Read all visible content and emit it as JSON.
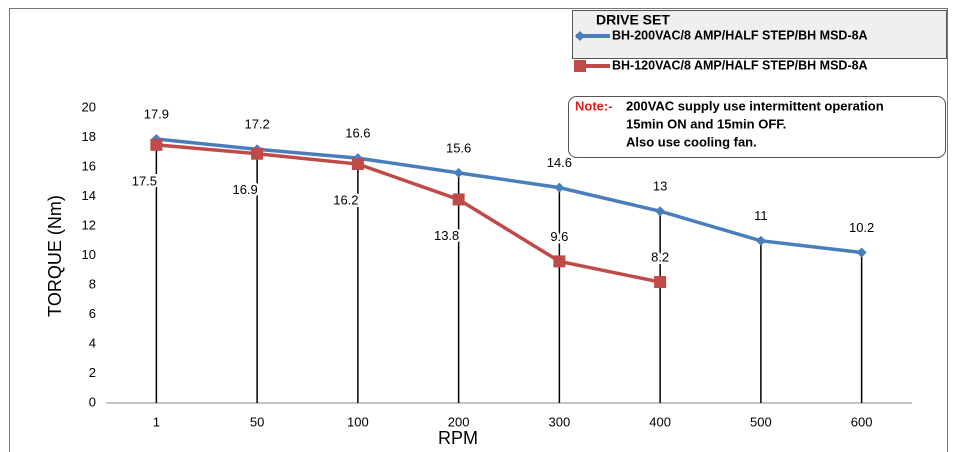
{
  "chart_data": {
    "type": "line",
    "y_label": "TORQUE (Nm)",
    "x_label": "RPM",
    "categories": [
      "1",
      "50",
      "100",
      "200",
      "300",
      "400",
      "500",
      "600"
    ],
    "series": [
      {
        "name": "BH-200VAC/8 AMP/HALF STEP/BH MSD-8A",
        "color": "#4a7ebb",
        "marker": "diamond",
        "values": [
          17.9,
          17.2,
          16.6,
          15.6,
          14.6,
          13,
          11,
          10.2
        ]
      },
      {
        "name": "BH-120VAC/8 AMP/HALF STEP/BH MSD-8A",
        "color": "#be4b48",
        "marker": "square",
        "values": [
          17.5,
          16.9,
          16.2,
          13.8,
          9.6,
          8.2,
          null,
          null
        ]
      }
    ],
    "ylim": [
      0,
      20
    ],
    "yticks": [
      0,
      2,
      4,
      6,
      8,
      10,
      12,
      14,
      16,
      18,
      20
    ],
    "legend_title": "DRIVE SET",
    "note": {
      "label": "Note:-",
      "lines": [
        "200VAC supply use intermittent operation",
        "15min ON and 15min OFF.",
        "Also use cooling fan."
      ]
    }
  }
}
